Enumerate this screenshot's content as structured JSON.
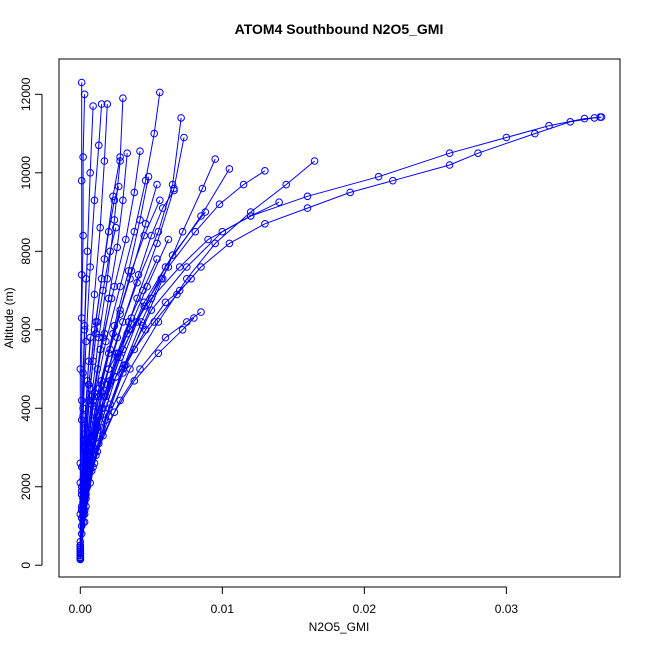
{
  "chart_data": {
    "type": "scatter",
    "title": "ATOM4 Southbound N2O5_GMI",
    "xlabel": "N2O5_GMI",
    "ylabel": "Altitude (m)",
    "xlim": [
      -0.0015,
      0.038
    ],
    "ylim": [
      -300,
      12900
    ],
    "xticks": [
      0.0,
      0.01,
      0.02,
      0.03
    ],
    "xtick_labels": [
      "0.00",
      "0.01",
      "0.02",
      "0.03"
    ],
    "yticks": [
      0,
      2000,
      4000,
      6000,
      8000,
      10000,
      12000
    ],
    "ytick_labels": [
      "0",
      "2000",
      "4000",
      "6000",
      "8000",
      "10000",
      "12000"
    ],
    "grid": false,
    "legend": "none",
    "color": "#0000ff",
    "series": [
      {
        "x": [
          0.0,
          0.0001,
          0.0002,
          0.0004,
          0.0008,
          0.0015,
          0.0025,
          0.0038,
          0.0052,
          0.0068,
          0.0085,
          0.0105,
          0.013,
          0.016,
          0.019,
          0.022,
          0.026,
          0.028,
          0.032,
          0.0345,
          0.0362,
          0.0366
        ],
        "y": [
          150,
          800,
          1600,
          2400,
          3200,
          4000,
          4800,
          5500,
          6200,
          6900,
          7600,
          8200,
          8700,
          9100,
          9500,
          9800,
          10200,
          10500,
          11000,
          11300,
          11400,
          11420
        ]
      },
      {
        "x": [
          0.0,
          0.0002,
          0.0005,
          0.001,
          0.002,
          0.0035,
          0.005,
          0.007,
          0.009,
          0.012,
          0.016,
          0.021,
          0.026,
          0.03,
          0.033,
          0.0355,
          0.0367
        ],
        "y": [
          300,
          1500,
          2800,
          3900,
          5000,
          6000,
          6800,
          7600,
          8300,
          8900,
          9400,
          9900,
          10500,
          10900,
          11200,
          11380,
          11420
        ]
      },
      {
        "x": [
          0.0,
          0.0003,
          0.0008,
          0.0016,
          0.0028,
          0.0042,
          0.006,
          0.0075,
          0.0085
        ],
        "y": [
          400,
          1400,
          2400,
          3300,
          4200,
          5000,
          5800,
          6200,
          6450
        ]
      },
      {
        "x": [
          0.0,
          0.0004,
          0.0012,
          0.0024,
          0.0038,
          0.0055,
          0.0072,
          0.008
        ],
        "y": [
          600,
          1700,
          2900,
          3900,
          4700,
          5400,
          6000,
          6300
        ]
      },
      {
        "x": [
          0.0,
          0.0005,
          0.0015,
          0.003,
          0.005,
          0.0075,
          0.01,
          0.012,
          0.014
        ],
        "y": [
          500,
          2000,
          3500,
          5000,
          6500,
          7600,
          8500,
          8900,
          9250
        ]
      },
      {
        "x": [
          0.0,
          0.0003,
          0.001,
          0.002,
          0.0035,
          0.0055,
          0.0075,
          0.0095,
          0.012,
          0.0145,
          0.0165
        ],
        "y": [
          200,
          1300,
          2600,
          3800,
          5000,
          6200,
          7300,
          8200,
          9000,
          9700,
          10300
        ]
      },
      {
        "x": [
          0.0,
          0.0004,
          0.0012,
          0.0025,
          0.004,
          0.006,
          0.0085,
          0.0105
        ],
        "y": [
          300,
          1800,
          3300,
          4800,
          6200,
          7600,
          8900,
          10100
        ]
      },
      {
        "x": [
          0.0,
          0.0005,
          0.0014,
          0.0028,
          0.0045,
          0.0065,
          0.0088
        ],
        "y": [
          400,
          2100,
          3800,
          5300,
          6700,
          7900,
          9000
        ]
      },
      {
        "x": [
          0.0,
          0.0004,
          0.0011,
          0.002,
          0.0032,
          0.0046,
          0.006,
          0.007,
          0.0078
        ],
        "y": [
          250,
          1500,
          2800,
          4000,
          5100,
          6000,
          6700,
          7000,
          7300
        ]
      },
      {
        "x": [
          0.0,
          0.0003,
          0.0009,
          0.0018,
          0.003,
          0.0045,
          0.0062,
          0.0081,
          0.0098,
          0.0115,
          0.013
        ],
        "y": [
          200,
          1600,
          3000,
          4300,
          5500,
          6600,
          7600,
          8500,
          9200,
          9700,
          10050
        ]
      },
      {
        "x": [
          0.0,
          0.0002,
          0.0006,
          0.0013,
          0.0023,
          0.0035,
          0.0046,
          0.0054
        ],
        "y": [
          350,
          1700,
          3100,
          4500,
          5900,
          7300,
          8700,
          9700
        ]
      },
      {
        "x": [
          0.0,
          0.0003,
          0.0008,
          0.0015,
          0.0024,
          0.0034,
          0.0042,
          0.0048
        ],
        "y": [
          500,
          1900,
          3300,
          4700,
          6100,
          7500,
          8800,
          9900
        ]
      },
      {
        "x": [
          0.0,
          0.0002,
          0.0005,
          0.001,
          0.0018,
          0.0028,
          0.0038,
          0.0046,
          0.0052,
          0.0056
        ],
        "y": [
          300,
          1500,
          2900,
          4300,
          5700,
          7100,
          8500,
          9800,
          11000,
          12050
        ]
      },
      {
        "x": [
          0.0,
          0.0002,
          0.0004,
          0.0008,
          0.0013,
          0.0019,
          0.0024,
          0.0028,
          0.003
        ],
        "y": [
          200,
          1500,
          2900,
          4300,
          5800,
          7300,
          8800,
          10300,
          11900
        ]
      },
      {
        "x": [
          0.0,
          0.0001,
          0.0003,
          0.0006,
          0.001,
          0.0014,
          0.0017,
          0.0019
        ],
        "y": [
          300,
          1800,
          3500,
          5200,
          6900,
          8600,
          10300,
          11750
        ]
      },
      {
        "x": [
          0.0,
          0.0002,
          0.0005,
          0.001,
          0.0016,
          0.0024,
          0.0032,
          0.0038,
          0.0042
        ],
        "y": [
          400,
          1600,
          3000,
          4400,
          5800,
          7100,
          8300,
          9500,
          10550
        ]
      },
      {
        "x": [
          0.0,
          0.0003,
          0.0008,
          0.0016,
          0.0027,
          0.004,
          0.0054,
          0.0066,
          0.0073
        ],
        "y": [
          250,
          1400,
          2700,
          4000,
          5400,
          6800,
          8200,
          9600,
          10900
        ]
      },
      {
        "x": [
          0.0,
          0.0002,
          0.0007,
          0.0015,
          0.0026,
          0.004,
          0.0055,
          0.0065,
          0.0071
        ],
        "y": [
          450,
          1700,
          3000,
          4400,
          5800,
          7200,
          8500,
          9700,
          11400
        ]
      },
      {
        "x": [
          0.0,
          0.0001,
          0.0003,
          0.0006,
          0.0011,
          0.0017,
          0.0023,
          0.0028
        ],
        "y": [
          150,
          1500,
          3000,
          4600,
          6200,
          7800,
          9400,
          10400
        ]
      },
      {
        "x": [
          0.0,
          0.0002,
          0.0006,
          0.0012,
          0.002,
          0.003,
          0.0041,
          0.005,
          0.0058,
          0.0066
        ],
        "y": [
          350,
          1400,
          2600,
          3800,
          5000,
          6200,
          7400,
          8400,
          9100,
          9550
        ]
      },
      {
        "x": [
          0.0,
          0.0003,
          0.0009,
          0.0018,
          0.003,
          0.0044,
          0.0058,
          0.0072,
          0.0086,
          0.0095
        ],
        "y": [
          200,
          1300,
          2500,
          3700,
          4900,
          6100,
          7300,
          8500,
          9600,
          10350
        ]
      },
      {
        "x": [
          0.0,
          0.0002,
          0.0005,
          0.0009,
          0.0014,
          0.002,
          0.0026,
          0.003,
          0.0033
        ],
        "y": [
          300,
          1600,
          2900,
          4200,
          5500,
          6800,
          8100,
          9300,
          10500
        ]
      },
      {
        "x": [
          0.0,
          0.0001,
          0.0003,
          0.0006,
          0.001,
          0.0015,
          0.002,
          0.0024,
          0.0027
        ],
        "y": [
          500,
          1800,
          3200,
          4600,
          6000,
          7300,
          8500,
          9300,
          9650
        ]
      },
      {
        "x": [
          0.0,
          0.0002,
          0.0004,
          0.0007,
          0.0011,
          0.0016,
          0.0021,
          0.0025
        ],
        "y": [
          350,
          1700,
          3100,
          4500,
          5900,
          7000,
          8000,
          8600
        ]
      },
      {
        "x": [
          0.0,
          0.0001,
          0.0002,
          0.0004,
          0.0007,
          0.001,
          0.0013,
          0.0015
        ],
        "y": [
          200,
          1900,
          3800,
          5700,
          7600,
          9300,
          10700,
          11750
        ]
      },
      {
        "x": [
          0.0,
          0.0001,
          0.0002,
          0.0003,
          0.0005,
          0.0007,
          0.0009
        ],
        "y": [
          150,
          2000,
          4000,
          6000,
          8000,
          10000,
          11700
        ]
      },
      {
        "x": [
          0.0,
          0.0,
          0.0001,
          0.0001,
          0.0002,
          0.0002,
          0.0003
        ],
        "y": [
          180,
          2100,
          4200,
          6300,
          8400,
          10400,
          12000
        ]
      },
      {
        "x": [
          0.0,
          0.0,
          0.0,
          0.0001,
          0.0001,
          0.0001
        ],
        "y": [
          250,
          2600,
          5000,
          7400,
          9800,
          12300
        ]
      },
      {
        "x": [
          0.0,
          0.0001,
          0.0004,
          0.0008,
          0.0013,
          0.002,
          0.0028,
          0.0036,
          0.0045,
          0.0056
        ],
        "y": [
          300,
          1200,
          2200,
          3200,
          4300,
          5400,
          6500,
          7500,
          8400,
          9300
        ]
      },
      {
        "x": [
          0.0,
          0.0002,
          0.0006,
          0.0012,
          0.0021,
          0.0033,
          0.0047,
          0.0062
        ],
        "y": [
          400,
          1300,
          2400,
          3500,
          4700,
          5900,
          7100,
          8300
        ]
      },
      {
        "x": [
          0.0,
          0.0003,
          0.0007,
          0.0013,
          0.0021,
          0.0031,
          0.0043,
          0.0057
        ],
        "y": [
          200,
          1100,
          2100,
          3100,
          4100,
          5100,
          6200,
          7300
        ]
      },
      {
        "x": [
          0.0,
          0.0002,
          0.0005,
          0.001,
          0.0017,
          0.0026,
          0.0036
        ],
        "y": [
          300,
          1300,
          2300,
          3300,
          4300,
          5300,
          6300
        ]
      },
      {
        "x": [
          0.0,
          0.0001,
          0.0003,
          0.0006,
          0.001,
          0.0015,
          0.0021,
          0.0028
        ],
        "y": [
          150,
          1000,
          1900,
          2800,
          3700,
          4600,
          5500,
          6400
        ]
      },
      {
        "x": [
          0.0,
          0.0002,
          0.0004,
          0.0008,
          0.0013,
          0.0019,
          0.0026,
          0.0034,
          0.0044,
          0.0054
        ],
        "y": [
          250,
          1100,
          2000,
          2900,
          3800,
          4600,
          5400,
          6200,
          7000,
          7800
        ]
      },
      {
        "x": [
          0.0,
          0.0001,
          0.0003,
          0.0005,
          0.0008,
          0.0012,
          0.0017,
          0.0022
        ],
        "y": [
          500,
          1400,
          2300,
          3200,
          4100,
          5000,
          5900,
          6800
        ]
      },
      {
        "x": [
          0.0,
          0.0001,
          0.0002,
          0.0004,
          0.0006,
          0.0009,
          0.0012
        ],
        "y": [
          200,
          1200,
          2200,
          3200,
          4200,
          5200,
          6200
        ]
      },
      {
        "x": [
          0.0,
          0.0001,
          0.0002,
          0.0003,
          0.0005,
          0.0007
        ],
        "y": [
          300,
          1400,
          2500,
          3600,
          4700,
          5800
        ]
      },
      {
        "x": [
          0.0,
          0.0,
          0.0001,
          0.0001,
          0.0002,
          0.0003,
          0.0004
        ],
        "y": [
          150,
          1300,
          2500,
          3700,
          4900,
          6100,
          7300
        ]
      }
    ]
  }
}
